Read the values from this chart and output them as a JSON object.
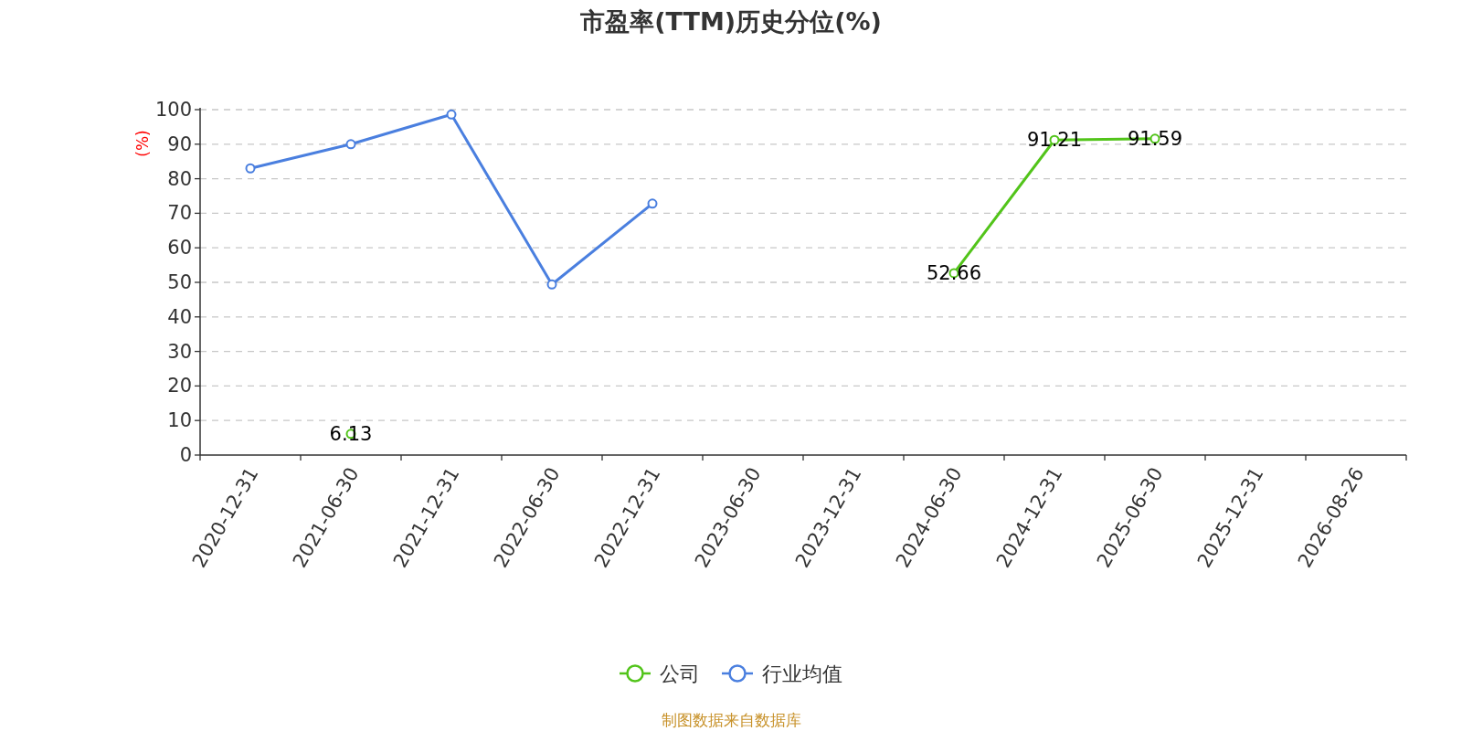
{
  "chart_data": {
    "type": "line",
    "title": "市盈率(TTM)历史分位(%)",
    "ylabel": "(%)",
    "categories": [
      "2020-12-31",
      "2021-06-30",
      "2021-12-31",
      "2022-06-30",
      "2022-12-31",
      "2023-06-30",
      "2023-12-31",
      "2024-06-30",
      "2024-12-31",
      "2025-06-30",
      "2025-12-31",
      "2026-08-26"
    ],
    "series": [
      {
        "name": "公司",
        "color": "#52c41a",
        "values": [
          null,
          6.13,
          null,
          null,
          null,
          null,
          null,
          52.66,
          91.21,
          91.59,
          null,
          null
        ],
        "value_labels": [
          null,
          "6.13",
          null,
          null,
          null,
          null,
          null,
          "52.66",
          "91.21",
          "91.59",
          null,
          null
        ]
      },
      {
        "name": "行业均值",
        "color": "#4a7fdf",
        "values": [
          83,
          90,
          98.6,
          49.4,
          72.8,
          null,
          null,
          null,
          null,
          null,
          null,
          null
        ]
      }
    ],
    "ylim": [
      0,
      100
    ],
    "yticks": [
      0,
      10,
      20,
      30,
      40,
      50,
      60,
      70,
      80,
      90,
      100
    ],
    "grid": "y",
    "legend": "bottom",
    "marker": "circle",
    "line_style": "solid",
    "annotations": [
      "制图数据来自数据库"
    ]
  }
}
